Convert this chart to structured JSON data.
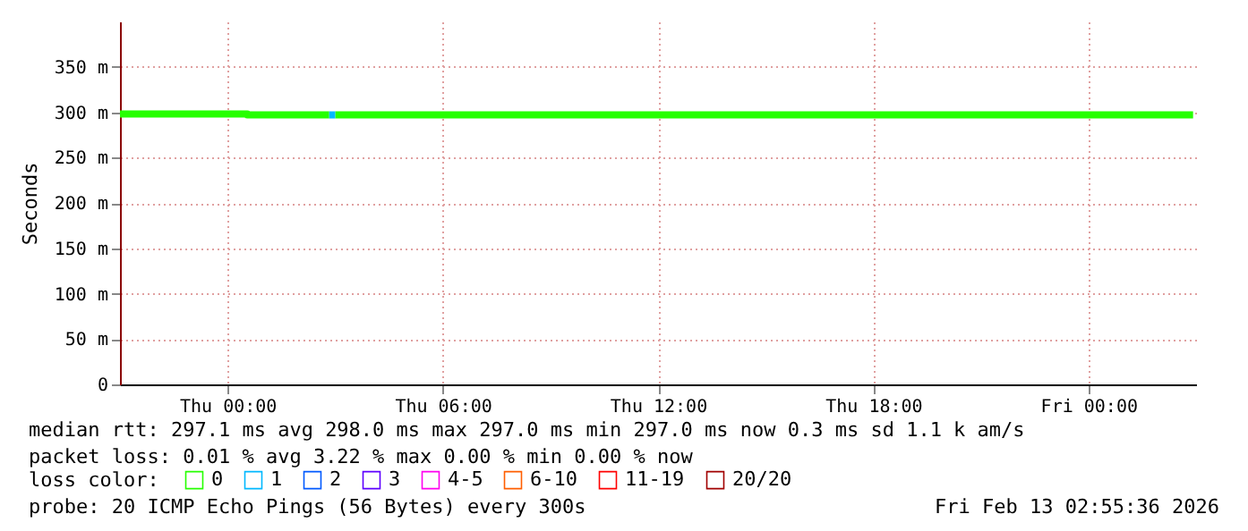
{
  "chart_data": {
    "type": "line",
    "ylabel": "Seconds",
    "xlim": [
      "2026-02-11T21:00",
      "2026-02-13T03:00"
    ],
    "xticks": [
      {
        "value": "2026-02-12T00:00",
        "label": "Thu 00:00"
      },
      {
        "value": "2026-02-12T06:00",
        "label": "Thu 06:00"
      },
      {
        "value": "2026-02-12T12:00",
        "label": "Thu 12:00"
      },
      {
        "value": "2026-02-12T18:00",
        "label": "Thu 18:00"
      },
      {
        "value": "2026-02-13T00:00",
        "label": "Fri 00:00"
      }
    ],
    "ylim": [
      0,
      400
    ],
    "yticks": [
      0,
      {
        "value": 50,
        "label": "50 m"
      },
      {
        "value": 100,
        "label": "100 m"
      },
      {
        "value": 150,
        "label": "150 m"
      },
      {
        "value": 200,
        "label": "200 m"
      },
      {
        "value": 250,
        "label": "250 m"
      },
      {
        "value": 300,
        "label": "300 m"
      },
      {
        "value": 350,
        "label": "350 m"
      }
    ],
    "grid": true,
    "legend": "bottom",
    "legend_title": "loss color:",
    "series": [
      {
        "name": "0",
        "color": "#26ff00",
        "x": [
          "2026-02-11T21:00",
          "2026-02-12T00:33",
          "2026-02-12T00:33",
          "2026-02-12T02:50",
          "2026-02-12T02:55",
          "2026-02-12T03:00",
          "2026-02-13T02:55"
        ],
        "values": [
          298,
          298,
          297,
          297,
          null,
          297,
          297
        ]
      },
      {
        "name": "1",
        "color": "#00b8ff",
        "x": [
          "2026-02-12T02:50",
          "2026-02-12T03:00"
        ],
        "values": [
          297,
          297
        ]
      },
      {
        "name": "2",
        "color": "#0059ff"
      },
      {
        "name": "3",
        "color": "#5e00ff"
      },
      {
        "name": "4-5",
        "color": "#ff00f0"
      },
      {
        "name": "6-10",
        "color": "#ff5e00"
      },
      {
        "name": "11-19",
        "color": "#ff0000"
      },
      {
        "name": "20/20",
        "color": "#a10000"
      }
    ],
    "annotations": [
      "median rtt:  297.1 ms avg  298.0 ms max  297.0 ms min  297.0 ms now  0.3 ms sd  1.1 k am/s",
      "packet loss: 0.01 % avg  3.22 % max  0.00 % min  0.00 % now",
      "probe:       20 ICMP Echo Pings (56 Bytes) every 300s",
      "Fri Feb 13 02:55:36 2026"
    ]
  }
}
